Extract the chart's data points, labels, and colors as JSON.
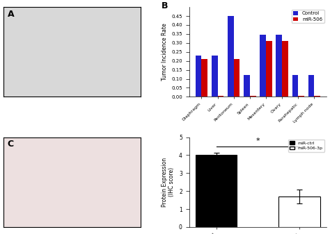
{
  "panel_B": {
    "categories": [
      "Diaphragm",
      "Liver",
      "Peritoneum",
      "Spleen",
      "Mesentery",
      "Ovary",
      "Parahepatic",
      "Lymph node"
    ],
    "control": [
      0.23,
      0.23,
      0.45,
      0.12,
      0.345,
      0.345,
      0.12,
      0.12
    ],
    "mir506": [
      0.21,
      0.005,
      0.21,
      0.005,
      0.31,
      0.31,
      0.005,
      0.005
    ],
    "ylabel": "Tumor Incidence Rate",
    "ylim": [
      0,
      0.5
    ],
    "yticks": [
      0,
      0.05,
      0.1,
      0.15,
      0.2,
      0.25,
      0.3,
      0.35,
      0.4,
      0.45
    ],
    "control_color": "#2222cc",
    "mir506_color": "#cc0000",
    "legend_control": "Control",
    "legend_mir506": "miR-506"
  },
  "panel_C_bar": {
    "categories": [
      "miR-ctrl",
      "miR-506-3p"
    ],
    "values": [
      4.0,
      1.7
    ],
    "errors": [
      0.15,
      0.4
    ],
    "colors": [
      "#000000",
      "#ffffff"
    ],
    "ylabel": "Protein Expression\n(IHC score)",
    "ylim": [
      0,
      5
    ],
    "yticks": [
      0,
      1,
      2,
      3,
      4,
      5
    ],
    "legend_ctrl": "miR-ctrl",
    "legend_mir": "miR-506-3p",
    "significance": "*"
  }
}
